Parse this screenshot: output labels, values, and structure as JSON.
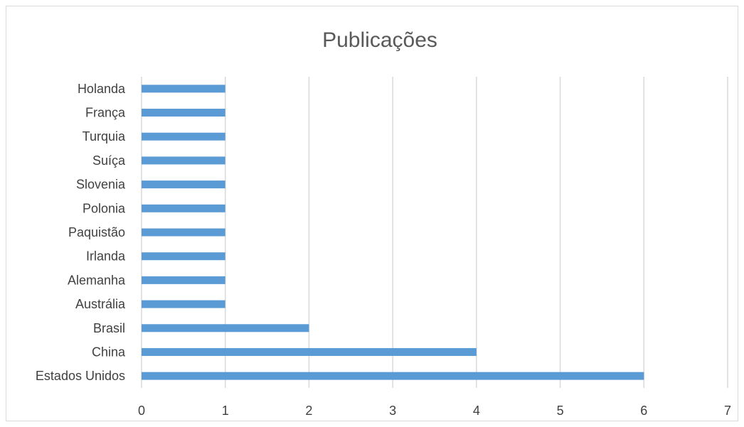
{
  "chart_data": {
    "type": "bar",
    "orientation": "horizontal",
    "title": "Publicações",
    "xlabel": "",
    "ylabel": "",
    "categories": [
      "Holanda",
      "França",
      "Turquia",
      "Suíça",
      "Slovenia",
      "Polonia",
      "Paquistão",
      "Irlanda",
      "Alemanha",
      "Austrália",
      "Brasil",
      "China",
      "Estados Unidos"
    ],
    "values": [
      1,
      1,
      1,
      1,
      1,
      1,
      1,
      1,
      1,
      1,
      2,
      4,
      6
    ],
    "xlim": [
      0,
      7
    ],
    "xticks": [
      "0",
      "1",
      "2",
      "3",
      "4",
      "5",
      "6",
      "7"
    ],
    "grid": "vertical",
    "legend": "none",
    "bar_color": "#5b9bd5"
  }
}
